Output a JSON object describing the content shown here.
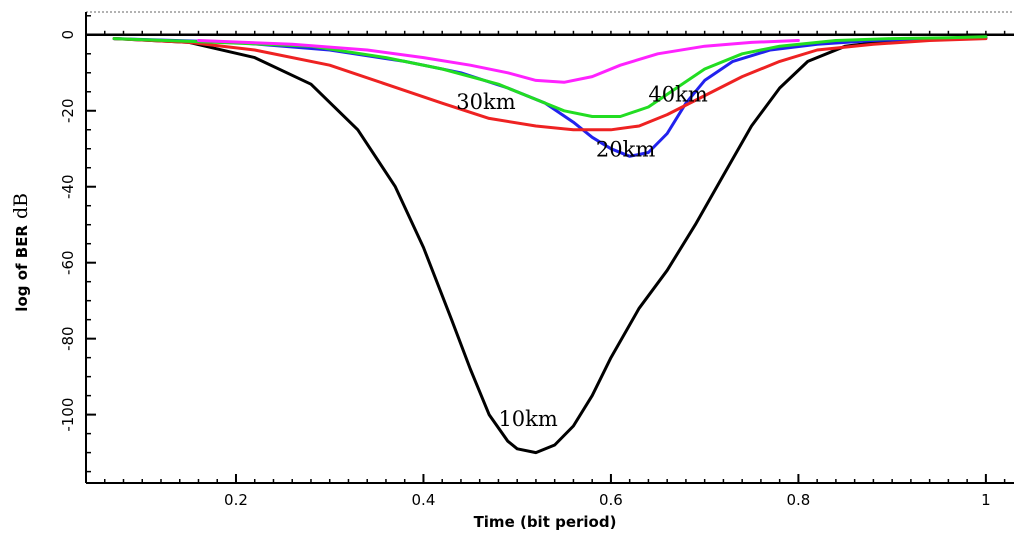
{
  "chart_data": {
    "type": "line",
    "xlabel": "Time (bit period)",
    "ylabel": "log of BER",
    "ylabel_unit": "dB",
    "xlim": [
      0.04,
      1.03
    ],
    "ylim": [
      -118,
      6
    ],
    "xticks": [
      0.2,
      0.4,
      0.6,
      0.8,
      1
    ],
    "xtick_labels": [
      "0.2",
      "0.4",
      "0.6",
      "0.8",
      "1"
    ],
    "yticks": [
      0,
      -20,
      -40,
      -60,
      -80,
      -100
    ],
    "ytick_labels": [
      "0",
      "-20",
      "-40",
      "-60",
      "-80",
      "-100"
    ],
    "grid": false,
    "colors": {
      "10km": "#000000",
      "20km": "#2222ee",
      "30km": "#ee2222",
      "40km": "#22dd22",
      "magenta": "#ff22ff"
    },
    "series": [
      {
        "name": "10km",
        "label_at": [
          0.48,
          -103
        ],
        "x": [
          0.07,
          0.15,
          0.22,
          0.28,
          0.33,
          0.37,
          0.4,
          0.43,
          0.45,
          0.47,
          0.49,
          0.5,
          0.52,
          0.54,
          0.56,
          0.58,
          0.6,
          0.63,
          0.66,
          0.69,
          0.72,
          0.75,
          0.78,
          0.81,
          0.85,
          0.9,
          0.95,
          1.0
        ],
        "y": [
          -1,
          -2,
          -6,
          -13,
          -25,
          -40,
          -56,
          -75,
          -88,
          -100,
          -107,
          -109,
          -110,
          -108,
          -103,
          -95,
          -85,
          -72,
          -62,
          -50,
          -37,
          -24,
          -14,
          -7,
          -3,
          -1.5,
          -1,
          -0.8
        ]
      },
      {
        "name": "20km",
        "label_at": [
          0.584,
          -32
        ],
        "x": [
          0.07,
          0.2,
          0.3,
          0.38,
          0.44,
          0.49,
          0.53,
          0.56,
          0.58,
          0.6,
          0.62,
          0.64,
          0.66,
          0.68,
          0.7,
          0.73,
          0.77,
          0.82,
          0.88,
          0.95,
          1.0
        ],
        "y": [
          -1,
          -2,
          -4,
          -7,
          -10,
          -14,
          -18,
          -23,
          -27,
          -30,
          -32,
          -31,
          -26,
          -18,
          -12,
          -7,
          -4,
          -2.5,
          -1.5,
          -1,
          -0.8
        ]
      },
      {
        "name": "30km",
        "label_at": [
          0.435,
          -19.5
        ],
        "x": [
          0.07,
          0.15,
          0.22,
          0.3,
          0.36,
          0.42,
          0.47,
          0.52,
          0.56,
          0.6,
          0.63,
          0.66,
          0.7,
          0.74,
          0.78,
          0.82,
          0.88,
          0.94,
          1.0
        ],
        "y": [
          -1,
          -2,
          -4,
          -8,
          -13,
          -18,
          -22,
          -24,
          -25,
          -25,
          -24,
          -21,
          -16,
          -11,
          -7,
          -4,
          -2.5,
          -1.5,
          -1
        ]
      },
      {
        "name": "40km",
        "label_at": [
          0.64,
          -17.5
        ],
        "x": [
          0.07,
          0.18,
          0.28,
          0.36,
          0.42,
          0.48,
          0.52,
          0.55,
          0.58,
          0.61,
          0.64,
          0.67,
          0.7,
          0.74,
          0.78,
          0.84,
          0.9,
          0.96,
          1.0
        ],
        "y": [
          -1,
          -2,
          -3,
          -6,
          -9,
          -13,
          -17,
          -20,
          -21.5,
          -21.5,
          -19,
          -14,
          -9,
          -5,
          -3,
          -1.5,
          -1,
          -0.8,
          -0.5
        ]
      },
      {
        "name": "",
        "x": [
          0.16,
          0.26,
          0.34,
          0.4,
          0.45,
          0.49,
          0.52,
          0.55,
          0.58,
          0.61,
          0.65,
          0.7,
          0.75,
          0.8
        ],
        "y": [
          -1.5,
          -2.5,
          -4,
          -6,
          -8,
          -10,
          -12,
          -12.5,
          -11,
          -8,
          -5,
          -3,
          -2,
          -1.5
        ]
      }
    ]
  }
}
